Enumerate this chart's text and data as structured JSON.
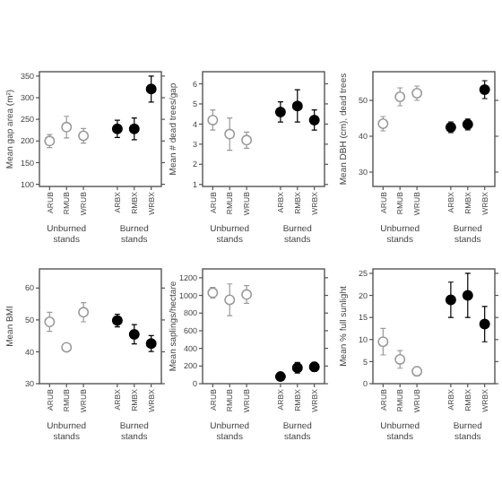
{
  "chart_data": [
    {
      "type": "scatter",
      "ylabel": "Mean gap area (m²)",
      "categories": [
        "ARUB",
        "RMUB",
        "WRUB",
        null,
        "ARBX",
        "RMBX",
        "WRBX"
      ],
      "ylim": [
        95,
        360
      ],
      "yticks": [
        100,
        150,
        200,
        250,
        300,
        350
      ],
      "marker": "circle",
      "annotations": [
        "Unburned stands",
        "Burned stands"
      ],
      "series": [
        {
          "color": "#999999",
          "values": [
            200,
            232,
            212,
            null,
            null,
            null,
            null
          ],
          "errors": [
            15,
            25,
            17,
            null,
            null,
            null,
            null
          ]
        },
        {
          "color": "#000000",
          "values": [
            null,
            null,
            null,
            null,
            228,
            228,
            320
          ],
          "errors": [
            null,
            null,
            null,
            null,
            20,
            25,
            30
          ]
        }
      ]
    },
    {
      "type": "scatter",
      "ylabel": "Mean # dead trees/gap",
      "categories": [
        "ARUB",
        "RMUB",
        "WRUB",
        null,
        "ARBX",
        "RMBX",
        "WRBX"
      ],
      "ylim": [
        0.9,
        6.6
      ],
      "yticks": [
        1,
        2,
        3,
        4,
        5,
        6
      ],
      "marker": "circle",
      "annotations": [
        "Unburned stands",
        "Burned stands"
      ],
      "series": [
        {
          "color": "#999999",
          "values": [
            4.2,
            3.5,
            3.2,
            null,
            null,
            null,
            null
          ],
          "errors": [
            0.5,
            0.8,
            0.4,
            null,
            null,
            null,
            null
          ]
        },
        {
          "color": "#000000",
          "values": [
            null,
            null,
            null,
            null,
            4.6,
            4.9,
            4.2
          ],
          "errors": [
            null,
            null,
            null,
            null,
            0.5,
            0.8,
            0.5
          ]
        }
      ]
    },
    {
      "type": "scatter",
      "ylabel": "Mean DBH (cm), dead trees",
      "categories": [
        "ARUB",
        "RMUB",
        "WRUB",
        null,
        "ARBX",
        "RMBX",
        "WRBX"
      ],
      "ylim": [
        26,
        58
      ],
      "yticks": [
        30,
        40,
        50
      ],
      "marker": "circle",
      "annotations": [
        "Unburned stands",
        "Burned stands"
      ],
      "series": [
        {
          "color": "#999999",
          "values": [
            43.5,
            51,
            52,
            null,
            null,
            null,
            null
          ],
          "errors": [
            2,
            2.5,
            2,
            null,
            null,
            null,
            null
          ]
        },
        {
          "color": "#000000",
          "values": [
            null,
            null,
            null,
            null,
            42.5,
            43.3,
            53
          ],
          "errors": [
            null,
            null,
            null,
            null,
            1.5,
            1.5,
            2.5
          ]
        }
      ]
    },
    {
      "type": "scatter",
      "ylabel": "Mean BMI",
      "categories": [
        "ARUB",
        "RMUB",
        "WRUB",
        null,
        "ARBX",
        "RMBX",
        "WRBX"
      ],
      "ylim": [
        30,
        66
      ],
      "yticks": [
        30,
        40,
        50,
        60
      ],
      "marker": "circle",
      "annotations": [
        "Unburned stands",
        "Burned stands"
      ],
      "series": [
        {
          "color": "#999999",
          "values": [
            49.4,
            41.4,
            52.4,
            null,
            null,
            null,
            null
          ],
          "errors": [
            3,
            null,
            3,
            null,
            null,
            null,
            null
          ]
        },
        {
          "color": "#000000",
          "values": [
            null,
            null,
            null,
            null,
            49.8,
            45.5,
            42.6
          ],
          "errors": [
            null,
            null,
            null,
            null,
            2,
            3,
            2.5
          ]
        }
      ]
    },
    {
      "type": "scatter",
      "ylabel": "Mean saplings/hectare",
      "categories": [
        "ARUB",
        "RMUB",
        "WRUB",
        null,
        "ARBX",
        "RMBX",
        "WRBX"
      ],
      "ylim": [
        0,
        1300
      ],
      "yticks": [
        0,
        200,
        400,
        600,
        800,
        1000,
        1200
      ],
      "marker": "circle",
      "annotations": [
        "Unburned stands",
        "Burned stands"
      ],
      "series": [
        {
          "color": "#999999",
          "values": [
            1030,
            950,
            1010,
            null,
            null,
            null,
            null
          ],
          "errors": [
            60,
            180,
            100,
            null,
            null,
            null,
            null
          ]
        },
        {
          "color": "#000000",
          "values": [
            null,
            null,
            null,
            null,
            80,
            180,
            190
          ],
          "errors": [
            null,
            null,
            null,
            null,
            null,
            60,
            50
          ]
        }
      ]
    },
    {
      "type": "scatter",
      "ylabel": "Mean % full sunlight",
      "categories": [
        "ARUB",
        "RMUB",
        "WRUB",
        null,
        "ARBX",
        "RMBX",
        "WRBX"
      ],
      "ylim": [
        0,
        26
      ],
      "yticks": [
        0,
        5,
        10,
        15,
        20,
        25
      ],
      "marker": "circle",
      "annotations": [
        "Unburned stands",
        "Burned stands"
      ],
      "series": [
        {
          "color": "#999999",
          "values": [
            9.5,
            5.5,
            2.8,
            null,
            null,
            null,
            null
          ],
          "errors": [
            3,
            2,
            1,
            null,
            null,
            null,
            null
          ]
        },
        {
          "color": "#000000",
          "values": [
            null,
            null,
            null,
            null,
            19,
            20,
            13.5
          ],
          "errors": [
            null,
            null,
            null,
            null,
            4,
            5,
            4
          ]
        }
      ]
    }
  ]
}
